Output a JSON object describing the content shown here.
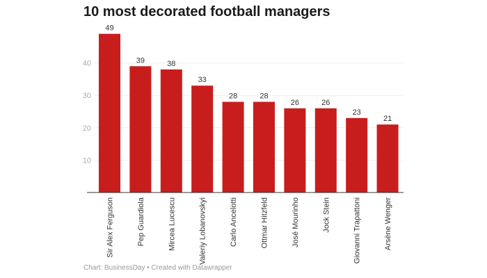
{
  "chart_data": {
    "type": "bar",
    "title": "10 most decorated football managers",
    "categories": [
      "Sir Alex Ferguson",
      "Pep Guardiola",
      "Mircea Lucescu",
      "Valeriy Lobanovskyi",
      "Carlo Ancelotti",
      "Ottmar Hitzfeld",
      "José Mourinho",
      "Jock Stein",
      "Giovanni Trapattoni",
      "Arsène Wenger"
    ],
    "values": [
      49,
      39,
      38,
      33,
      28,
      28,
      26,
      26,
      23,
      21
    ],
    "yticks": [
      10,
      20,
      30,
      40
    ],
    "ylim": [
      0,
      50
    ],
    "grid": true,
    "bar_color": "#c71e1d",
    "xlabel": "",
    "ylabel": ""
  },
  "footer": "Chart: BusinessDay • Created with Datawrapper"
}
